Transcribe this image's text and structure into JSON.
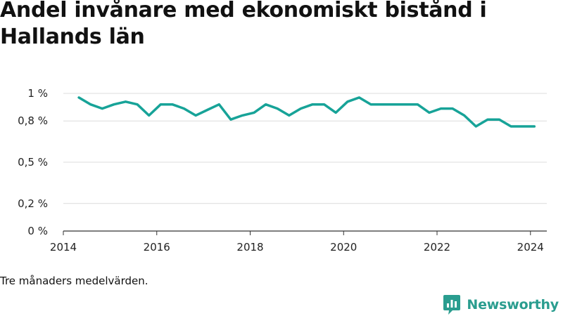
{
  "title": "Andel invånare med ekonomiskt bistånd i Hallands län",
  "note": "Tre månaders medelvärden.",
  "brand": {
    "name": "Newsworthy",
    "icon": "newsworthy-logo-icon",
    "color": "#2a9d8f"
  },
  "chart_data": {
    "type": "line",
    "title": "Andel invånare med ekonomiskt bistånd i Hallands län",
    "xlabel": "",
    "ylabel": "",
    "x_ticks": [
      "2014",
      "2016",
      "2018",
      "2020",
      "2022",
      "2024"
    ],
    "y_ticks": [
      "0 %",
      "0,2 %",
      "0,5 %",
      "0,8 %",
      "1 %"
    ],
    "xlim": [
      2014.0,
      2024.35
    ],
    "ylim": [
      0,
      1.0
    ],
    "grid": "horizontal",
    "legend": "none",
    "series": [
      {
        "color": "#17a398",
        "points": [
          [
            "2014-05",
            0.97
          ],
          [
            "2014-08",
            0.92
          ],
          [
            "2014-11",
            0.89
          ],
          [
            "2015-02",
            0.92
          ],
          [
            "2015-05",
            0.94
          ],
          [
            "2015-08",
            0.92
          ],
          [
            "2015-11",
            0.84
          ],
          [
            "2016-02",
            0.92
          ],
          [
            "2016-05",
            0.92
          ],
          [
            "2016-08",
            0.89
          ],
          [
            "2016-11",
            0.84
          ],
          [
            "2017-02",
            0.88
          ],
          [
            "2017-05",
            0.92
          ],
          [
            "2017-08",
            0.81
          ],
          [
            "2017-11",
            0.84
          ],
          [
            "2018-02",
            0.86
          ],
          [
            "2018-05",
            0.92
          ],
          [
            "2018-08",
            0.89
          ],
          [
            "2018-11",
            0.84
          ],
          [
            "2019-02",
            0.89
          ],
          [
            "2019-05",
            0.92
          ],
          [
            "2019-08",
            0.92
          ],
          [
            "2019-11",
            0.86
          ],
          [
            "2020-02",
            0.94
          ],
          [
            "2020-05",
            0.97
          ],
          [
            "2020-08",
            0.92
          ],
          [
            "2020-11",
            0.92
          ],
          [
            "2021-02",
            0.92
          ],
          [
            "2021-05",
            0.92
          ],
          [
            "2021-08",
            0.92
          ],
          [
            "2021-11",
            0.86
          ],
          [
            "2022-02",
            0.89
          ],
          [
            "2022-05",
            0.89
          ],
          [
            "2022-08",
            0.84
          ],
          [
            "2022-11",
            0.76
          ],
          [
            "2023-02",
            0.81
          ],
          [
            "2023-05",
            0.81
          ],
          [
            "2023-08",
            0.76
          ],
          [
            "2023-11",
            0.76
          ],
          [
            "2024-02",
            0.76
          ]
        ]
      }
    ]
  }
}
